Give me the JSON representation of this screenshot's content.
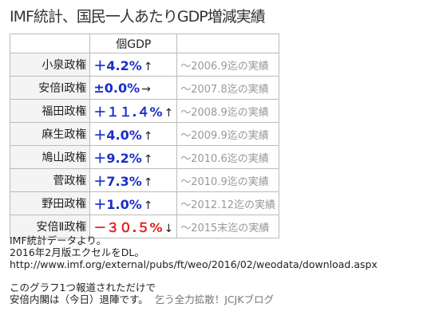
{
  "header": {
    "title": "IMF統計、国民一人あたりGDP増減実績"
  },
  "table": {
    "column_header": "個GDP",
    "rows": [
      {
        "name": "小泉政権",
        "value": "＋4.2%",
        "arrow": "↑",
        "note": "～2006.9迄の実績",
        "color": "#1a2fc8"
      },
      {
        "name": "安倍Ⅰ政権",
        "value": "±0.0%",
        "arrow": "→",
        "note": "～2007.8迄の実績",
        "color": "#1a2fc8"
      },
      {
        "name": "福田政権",
        "value": "＋１１.４%",
        "arrow": "↑",
        "note": "～2008.9迄の実績",
        "color": "#1a2fc8"
      },
      {
        "name": "麻生政権",
        "value": "＋4.0%",
        "arrow": "↑",
        "note": "～2009.9迄の実績",
        "color": "#1a2fc8"
      },
      {
        "name": "鳩山政権",
        "value": "＋9.2%",
        "arrow": "↑",
        "note": "～2010.6迄の実績",
        "color": "#1a2fc8"
      },
      {
        "name": "菅政権",
        "value": "＋7.3%",
        "arrow": "↑",
        "note": "～2010.9迄の実績",
        "color": "#1a2fc8"
      },
      {
        "name": "野田政権",
        "value": "＋1.0%",
        "arrow": "↑",
        "note": "～2012.12迄の実績",
        "color": "#1a2fc8"
      },
      {
        "name": "安倍Ⅱ政権",
        "value": "－３０.５%",
        "arrow": "↓",
        "note": "～2015末迄の実績",
        "color": "#e0201c"
      }
    ]
  },
  "footer": {
    "lines": [
      "IMF統計データより。",
      "2016年2月版エクセルをDL。",
      "http://www.imf.org/external/pubs/ft/weo/2016/02/weodata/download.aspx"
    ],
    "message": [
      "このグラフ1つ報道されただけで",
      "安倍内閣は（今日）退陣です。"
    ],
    "credit": "乞う全力拡散！JCJKブログ"
  }
}
